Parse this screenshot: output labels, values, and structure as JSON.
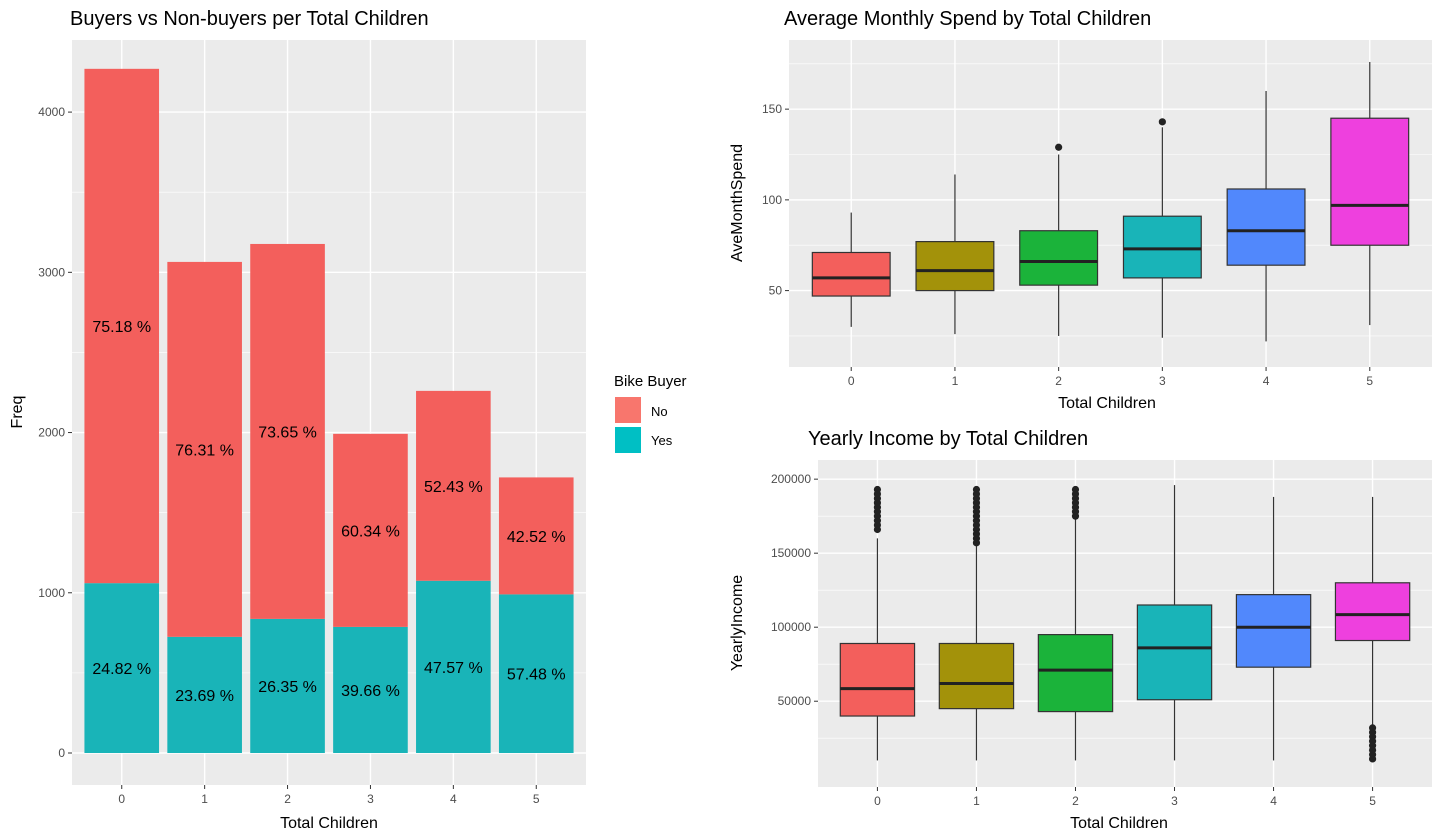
{
  "chart_data": [
    {
      "type": "bar",
      "stacked": true,
      "title": "Buyers vs Non-buyers per Total Children",
      "xlabel": "Total Children",
      "ylabel": "Freq",
      "categories": [
        "0",
        "1",
        "2",
        "3",
        "4",
        "5"
      ],
      "ylim": [
        0,
        4400
      ],
      "yticks": [
        0,
        1000,
        2000,
        3000,
        4000
      ],
      "grid": true,
      "legend": {
        "title": "Bike Buyer",
        "placement": "right",
        "entries": [
          {
            "label": "No",
            "color": "#F8766D"
          },
          {
            "label": "Yes",
            "color": "#00BFC4"
          }
        ]
      },
      "series": [
        {
          "name": "Yes",
          "color": "#19B4B8",
          "values": [
            1060,
            725,
            837,
            787,
            1075,
            990
          ],
          "labels": [
            "24.82 %",
            "23.69 %",
            "26.35 %",
            "39.66 %",
            "47.57 %",
            "57.48 %"
          ]
        },
        {
          "name": "No",
          "color": "#F35F5C",
          "values": [
            3210,
            2340,
            2340,
            1205,
            1185,
            730
          ],
          "labels": [
            "75.18 %",
            "76.31 %",
            "73.65 %",
            "60.34 %",
            "52.43 %",
            "42.52 %"
          ]
        }
      ]
    },
    {
      "type": "box",
      "title": "Average Monthly Spend by Total Children",
      "xlabel": "Total Children",
      "ylabel": "AveMonthSpend",
      "categories": [
        "0",
        "1",
        "2",
        "3",
        "4",
        "5"
      ],
      "ylim": [
        16,
        180
      ],
      "yticks": [
        50,
        100,
        150
      ],
      "grid": true,
      "boxes": [
        {
          "whisker_low": 30,
          "q1": 47,
          "median": 57,
          "q3": 71,
          "whisker_high": 93,
          "outliers": [],
          "color": "#F35F5C"
        },
        {
          "whisker_low": 26,
          "q1": 50,
          "median": 61,
          "q3": 77,
          "whisker_high": 114,
          "outliers": [],
          "color": "#A3920A"
        },
        {
          "whisker_low": 25,
          "q1": 53,
          "median": 66,
          "q3": 83,
          "whisker_high": 125,
          "outliers": [
            129
          ],
          "color": "#1BB33A"
        },
        {
          "whisker_low": 24,
          "q1": 57,
          "median": 73,
          "q3": 91,
          "whisker_high": 140,
          "outliers": [
            143
          ],
          "color": "#19B4B8"
        },
        {
          "whisker_low": 22,
          "q1": 64,
          "median": 83,
          "q3": 106,
          "whisker_high": 160,
          "outliers": [],
          "color": "#5188FC"
        },
        {
          "whisker_low": 31,
          "q1": 75,
          "median": 97,
          "q3": 145,
          "whisker_high": 176,
          "outliers": [],
          "color": "#EE40DE"
        }
      ]
    },
    {
      "type": "box",
      "title": "Yearly Income by Total Children",
      "xlabel": "Total Children",
      "ylabel": "YearlyIncome",
      "categories": [
        "0",
        "1",
        "2",
        "3",
        "4",
        "5"
      ],
      "ylim": [
        2000,
        203000
      ],
      "yticks": [
        50000,
        100000,
        150000,
        200000
      ],
      "grid": true,
      "boxes": [
        {
          "whisker_low": 10000,
          "q1": 40000,
          "median": 58500,
          "q3": 89000,
          "whisker_high": 160000,
          "outliers": [
            166000,
            169000,
            172000,
            175000,
            178000,
            181000,
            184000,
            187000,
            190000,
            193000
          ],
          "color": "#F35F5C"
        },
        {
          "whisker_low": 10000,
          "q1": 45000,
          "median": 62000,
          "q3": 89000,
          "whisker_high": 155000,
          "outliers": [
            157000,
            160000,
            163000,
            166000,
            169000,
            172000,
            175000,
            178000,
            181000,
            184000,
            187000,
            190000,
            193000
          ],
          "color": "#A3920A"
        },
        {
          "whisker_low": 10000,
          "q1": 43000,
          "median": 71000,
          "q3": 95000,
          "whisker_high": 173000,
          "outliers": [
            175000,
            178000,
            181000,
            184000,
            187000,
            190000,
            193000
          ],
          "color": "#1BB33A"
        },
        {
          "whisker_low": 10000,
          "q1": 51000,
          "median": 86000,
          "q3": 115000,
          "whisker_high": 196000,
          "outliers": [],
          "color": "#19B4B8"
        },
        {
          "whisker_low": 10000,
          "q1": 73000,
          "median": 100000,
          "q3": 122000,
          "whisker_high": 188000,
          "outliers": [],
          "color": "#5188FC"
        },
        {
          "whisker_low": 33000,
          "q1": 91000,
          "median": 108500,
          "q3": 130000,
          "whisker_high": 188000,
          "outliers": [
            11000,
            14000,
            17000,
            20000,
            23000,
            26000,
            29000,
            32000
          ],
          "color": "#EE40DE"
        }
      ]
    }
  ]
}
